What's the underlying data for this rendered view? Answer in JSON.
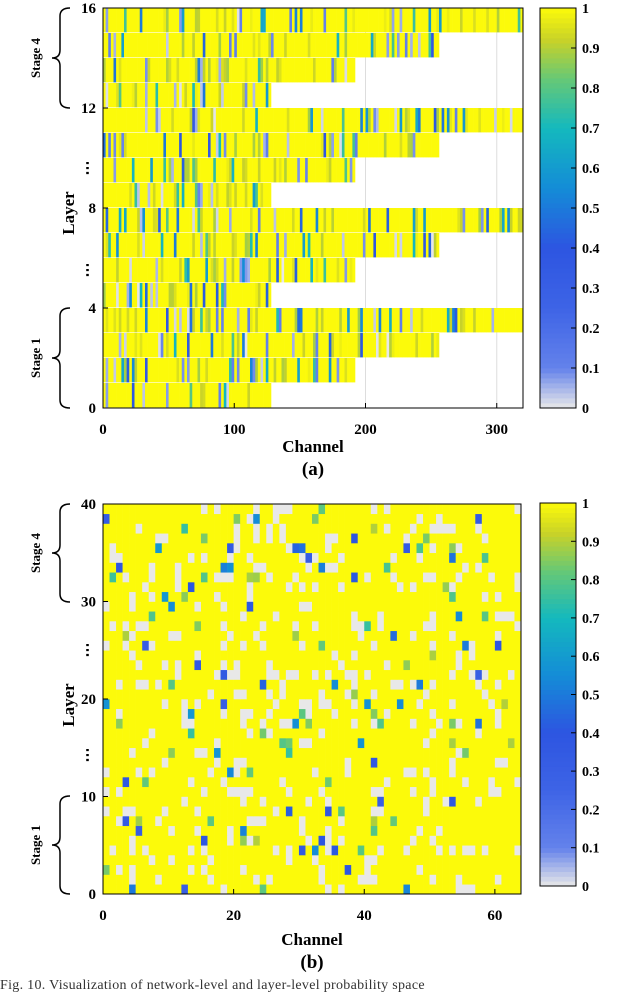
{
  "chart_data": [
    {
      "id": "a",
      "type": "heatmap",
      "subtitle": "(a)",
      "xlabel": "Channel",
      "ylabel": "Layer",
      "xlim": [
        0,
        320
      ],
      "ylim": [
        0,
        16
      ],
      "xticks": [
        "0",
        "100",
        "200",
        "300"
      ],
      "yticks": [
        "0",
        "4",
        "8",
        "12",
        "16"
      ],
      "ellipsis": [
        "⋯",
        "⋯"
      ],
      "stage_labels": [
        "Stage 1",
        "Stage 4"
      ],
      "layer_channels": [
        128,
        192,
        256,
        320,
        128,
        192,
        256,
        320,
        128,
        192,
        256,
        320,
        128,
        192,
        256,
        320
      ],
      "colorbar": {
        "min": 0,
        "max": 1,
        "ticks": [
          "0",
          "0.1",
          "0.2",
          "0.3",
          "0.4",
          "0.5",
          "0.6",
          "0.7",
          "0.8",
          "0.9",
          "1"
        ]
      },
      "grid": true
    },
    {
      "id": "b",
      "type": "heatmap",
      "subtitle": "(b)",
      "xlabel": "Channel",
      "ylabel": "Layer",
      "xlim": [
        0,
        64
      ],
      "ylim": [
        0,
        40
      ],
      "xticks": [
        "0",
        "20",
        "40",
        "60"
      ],
      "yticks": [
        "0",
        "10",
        "20",
        "30",
        "40"
      ],
      "ellipsis": [
        "⋯",
        "⋯"
      ],
      "stage_labels": [
        "Stage 1",
        "Stage 4"
      ],
      "rows": 40,
      "cols": 64,
      "colorbar": {
        "min": 0,
        "max": 1,
        "ticks": [
          "0",
          "0.1",
          "0.2",
          "0.3",
          "0.4",
          "0.5",
          "0.6",
          "0.7",
          "0.8",
          "0.9",
          "1"
        ]
      },
      "grid": false
    }
  ],
  "caption": "Fig. 10.  Visualization of network-level and layer-level probability space"
}
